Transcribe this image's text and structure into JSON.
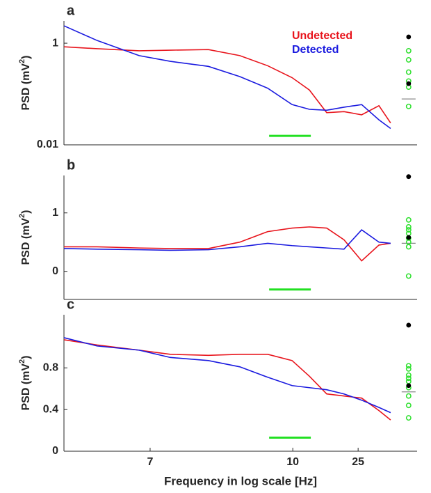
{
  "chart_data": [
    {
      "type": "line",
      "panel": "a",
      "ylabel": [
        "PSD (mV",
        "2",
        ")"
      ],
      "ylog": true,
      "x": [
        0,
        9.4,
        21.3,
        30.1,
        40.9,
        49.8,
        57.7,
        64.6,
        69.5,
        74.4,
        79.3,
        84.3,
        89.2,
        92.5
      ],
      "xlim": [
        0,
        100
      ],
      "ylim": [
        0.01,
        2.75
      ],
      "yticks": [
        1,
        0.01
      ],
      "series": [
        {
          "name": "Undetected",
          "color": "#e8141c",
          "values": [
            0.85,
            0.78,
            0.71,
            0.73,
            0.75,
            0.57,
            0.36,
            0.21,
            0.12,
            0.043,
            0.045,
            0.039,
            0.059,
            0.027
          ]
        },
        {
          "name": "Detected",
          "color": "#1a1adf",
          "values": [
            2.2,
            1.13,
            0.57,
            0.44,
            0.35,
            0.22,
            0.13,
            0.062,
            0.05,
            0.048,
            0.055,
            0.062,
            0.031,
            0.021
          ]
        }
      ],
      "points_x": 97.6,
      "points": {
        "color": "#2ee02e",
        "values": [
          0.71,
          0.47,
          0.27,
          0.18,
          0.137,
          0.057
        ]
      },
      "highlight": {
        "color": "#000000",
        "values": [
          1.33,
          0.16
        ]
      },
      "median": {
        "color": "#888888",
        "value": 0.08
      },
      "significance": {
        "color": "#22e022",
        "x": [
          58.1,
          69.9
        ],
        "y": 0.015
      }
    },
    {
      "type": "line",
      "panel": "b",
      "ylabel": [
        "PSD (mV",
        "2",
        ")"
      ],
      "ylog": false,
      "x": [
        0,
        9.4,
        21.3,
        30.1,
        40.9,
        49.8,
        57.7,
        64.6,
        69.5,
        74.4,
        79.3,
        84.3,
        89.2,
        92.5
      ],
      "xlim": [
        0,
        100
      ],
      "ylim": [
        -0.48,
        1.64
      ],
      "yticks": [
        1,
        0
      ],
      "series": [
        {
          "color": "#e8141c",
          "values": [
            0.42,
            0.42,
            0.4,
            0.39,
            0.39,
            0.5,
            0.68,
            0.74,
            0.76,
            0.74,
            0.54,
            0.18,
            0.45,
            0.48
          ]
        },
        {
          "color": "#1a1adf",
          "values": [
            0.39,
            0.38,
            0.37,
            0.36,
            0.37,
            0.42,
            0.48,
            0.44,
            0.42,
            0.4,
            0.38,
            0.71,
            0.5,
            0.48
          ]
        }
      ],
      "points_x": 97.6,
      "points": {
        "color": "#2ee02e",
        "values": [
          0.88,
          0.76,
          0.71,
          0.65,
          0.57,
          0.5,
          0.42,
          -0.08
        ]
      },
      "highlight": {
        "color": "#000000",
        "values": [
          1.62,
          0.58
        ]
      },
      "median": {
        "color": "#888888",
        "value": 0.48
      },
      "significance": {
        "color": "#22e022",
        "x": [
          58.1,
          69.9
        ],
        "y": -0.31
      }
    },
    {
      "type": "line",
      "panel": "c",
      "ylabel": [
        "PSD (mV",
        "2",
        ")"
      ],
      "ylog": false,
      "x": [
        0,
        9.4,
        21.3,
        30.1,
        40.9,
        49.8,
        57.7,
        64.6,
        69.5,
        74.4,
        79.3,
        84.3,
        89.2,
        92.5
      ],
      "xlim": [
        0,
        100
      ],
      "ylim": [
        0,
        1.31
      ],
      "yticks": [
        0,
        0.4,
        0.8
      ],
      "xticks": [
        {
          "value": 24.4,
          "label": "7"
        },
        {
          "value": 64.8,
          "label": "10"
        },
        {
          "value": 83.3,
          "label": "25"
        }
      ],
      "xlabel": "Frequency in log scale [Hz]",
      "series": [
        {
          "color": "#e8141c",
          "values": [
            1.07,
            1.02,
            0.97,
            0.93,
            0.92,
            0.93,
            0.93,
            0.87,
            0.72,
            0.55,
            0.53,
            0.51,
            0.39,
            0.3
          ]
        },
        {
          "color": "#1a1adf",
          "values": [
            1.09,
            1.01,
            0.97,
            0.9,
            0.87,
            0.81,
            0.71,
            0.63,
            0.61,
            0.59,
            0.55,
            0.49,
            0.42,
            0.37
          ]
        }
      ],
      "points_x": 97.6,
      "points": {
        "color": "#2ee02e",
        "values": [
          0.82,
          0.79,
          0.73,
          0.7,
          0.67,
          0.61,
          0.53,
          0.44,
          0.32
        ]
      },
      "highlight": {
        "color": "#000000",
        "values": [
          1.21,
          0.63
        ]
      },
      "median": {
        "color": "#888888",
        "value": 0.57
      },
      "significance": {
        "color": "#22e022",
        "x": [
          58.1,
          69.9
        ],
        "y": 0.13
      }
    }
  ]
}
